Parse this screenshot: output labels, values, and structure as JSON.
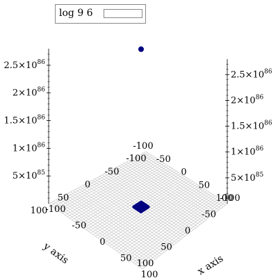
{
  "chart_data": {
    "type": "scatter3d",
    "title": "",
    "legend": {
      "entries": [
        "log 9 6"
      ],
      "position": "top-left"
    },
    "x_axis": {
      "label": "x axis",
      "ticks": [
        -100,
        -50,
        0,
        50,
        100
      ],
      "tick_labels": [
        "-100",
        "-50",
        "0",
        "50",
        "100"
      ],
      "range": [
        -100,
        100
      ]
    },
    "y_axis": {
      "label": "y axis",
      "ticks": [
        -100,
        -50,
        0,
        50,
        100
      ],
      "tick_labels": [
        "-100",
        "-50",
        "0",
        "50",
        "100"
      ],
      "range": [
        -100,
        100
      ]
    },
    "z_axis": {
      "label": "",
      "range": [
        0,
        2.8e+86
      ],
      "ticks": [
        5e+85,
        1e+86,
        1.5e+86,
        2e+86,
        2.5e+86
      ],
      "tick_labels": [
        {
          "mant": "5",
          "exp": "85"
        },
        {
          "mant": "1",
          "exp": "86"
        },
        {
          "mant": "1.5",
          "exp": "86"
        },
        {
          "mant": "2",
          "exp": "86"
        },
        {
          "mant": "2.5",
          "exp": "86"
        }
      ],
      "times_sign": "×10"
    },
    "series": [
      {
        "name": "log 9 6",
        "color": "#000080",
        "surface_color": "#000080",
        "outlier_point": {
          "x": 0,
          "y": 0,
          "z": 2.85e+86
        },
        "cluster": {
          "x_range": [
            -8,
            8
          ],
          "y_range": [
            -8,
            8
          ],
          "z": 0
        }
      }
    ],
    "grid": true,
    "mesh_color": "#c0c0c0"
  }
}
